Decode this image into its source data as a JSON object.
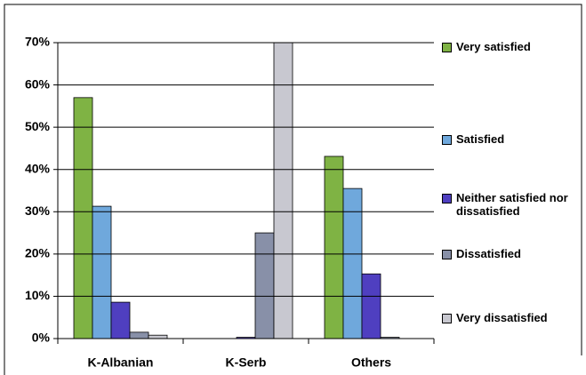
{
  "chart_data": {
    "type": "bar",
    "categories": [
      "K-Albanian",
      "K-Serb",
      "Others"
    ],
    "series": [
      {
        "name": "Very satisfied",
        "color": "#7fb344",
        "values": [
          57,
          0,
          43.1
        ]
      },
      {
        "name": "Satisfied",
        "color": "#6fa8dc",
        "values": [
          31.3,
          0,
          35.5
        ]
      },
      {
        "name": "Neither satisfied nor dissatisfied",
        "color": "#4f3fc0",
        "values": [
          8.6,
          0.3,
          15.3
        ]
      },
      {
        "name": "Dissatisfied",
        "color": "#8890a8",
        "values": [
          1.5,
          25,
          0.3
        ]
      },
      {
        "name": "Very dissatisfied",
        "color": "#c8c8d0",
        "values": [
          0.8,
          75,
          0
        ]
      }
    ],
    "ylim": [
      0,
      70
    ],
    "yticks": [
      {
        "value": 0,
        "label": "0%"
      },
      {
        "value": 10,
        "label": "10%"
      },
      {
        "value": 20,
        "label": "20%"
      },
      {
        "value": 30,
        "label": "30%"
      },
      {
        "value": 40,
        "label": "40%"
      },
      {
        "value": 50,
        "label": "50%"
      },
      {
        "value": 60,
        "label": "60%"
      },
      {
        "value": 70,
        "label": "70%"
      }
    ],
    "grid": true,
    "legend": "right"
  }
}
